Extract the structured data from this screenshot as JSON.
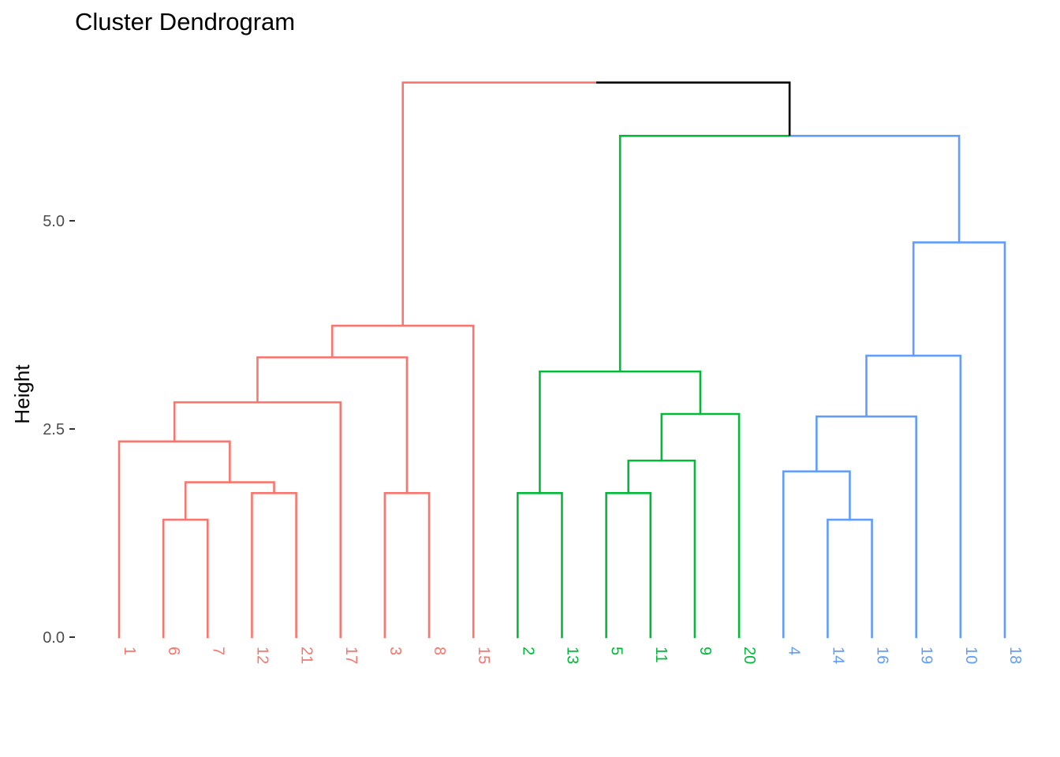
{
  "chart_data": {
    "type": "dendrogram",
    "title": "Cluster Dendrogram",
    "xlabel": "",
    "ylabel": "Height",
    "ylim": [
      0,
      6.8
    ],
    "y_ticks": [
      0.0,
      2.5,
      5.0
    ],
    "y_tick_labels": [
      "0.0",
      "2.5",
      "5.0"
    ],
    "grid": false,
    "leaf_order": [
      "1",
      "6",
      "7",
      "12",
      "21",
      "17",
      "3",
      "8",
      "15",
      "2",
      "13",
      "5",
      "11",
      "9",
      "20",
      "4",
      "14",
      "16",
      "19",
      "10",
      "18"
    ],
    "leaf_cluster": [
      1,
      1,
      1,
      1,
      1,
      1,
      1,
      1,
      1,
      2,
      2,
      2,
      2,
      2,
      2,
      3,
      3,
      3,
      3,
      3,
      3
    ],
    "cluster_colors": {
      "1": "#f8766d",
      "2": "#00ba38",
      "3": "#619cff",
      "root": "#000000"
    },
    "merges": [
      {
        "left": "6",
        "right": "7",
        "height": 1.41,
        "cluster": 1
      },
      {
        "left": "12",
        "right": "21",
        "height": 1.73,
        "cluster": 1
      },
      {
        "left": "6-7",
        "right": "12-21",
        "height": 1.86,
        "cluster": 1
      },
      {
        "left": "1",
        "right": "6-7-12-21",
        "height": 2.35,
        "cluster": 1
      },
      {
        "left": "1-6-7-12-21",
        "right": "17",
        "height": 2.82,
        "cluster": 1
      },
      {
        "left": "3",
        "right": "8",
        "height": 1.73,
        "cluster": 1
      },
      {
        "left": "1-6-7-12-21-17",
        "right": "3-8",
        "height": 3.36,
        "cluster": 1
      },
      {
        "left": "1-6-7-12-21-17-3-8",
        "right": "15",
        "height": 3.74,
        "cluster": 1
      },
      {
        "left": "2",
        "right": "13",
        "height": 1.73,
        "cluster": 2
      },
      {
        "left": "5",
        "right": "11",
        "height": 1.73,
        "cluster": 2
      },
      {
        "left": "5-11",
        "right": "9",
        "height": 2.12,
        "cluster": 2
      },
      {
        "left": "5-11-9",
        "right": "20",
        "height": 2.68,
        "cluster": 2
      },
      {
        "left": "2-13",
        "right": "5-11-9-20",
        "height": 3.19,
        "cluster": 2
      },
      {
        "left": "14",
        "right": "16",
        "height": 1.41,
        "cluster": 3
      },
      {
        "left": "4",
        "right": "14-16",
        "height": 1.99,
        "cluster": 3
      },
      {
        "left": "4-14-16",
        "right": "19",
        "height": 2.65,
        "cluster": 3
      },
      {
        "left": "4-14-16-19",
        "right": "10",
        "height": 3.38,
        "cluster": 3
      },
      {
        "left": "4-14-16-19-10",
        "right": "18",
        "height": 4.74,
        "cluster": 3
      },
      {
        "left": "cluster2",
        "right": "cluster3",
        "height": 6.02,
        "cluster": 0
      },
      {
        "left": "cluster1",
        "right": "cluster2-3",
        "height": 6.66,
        "cluster": 0
      }
    ]
  }
}
